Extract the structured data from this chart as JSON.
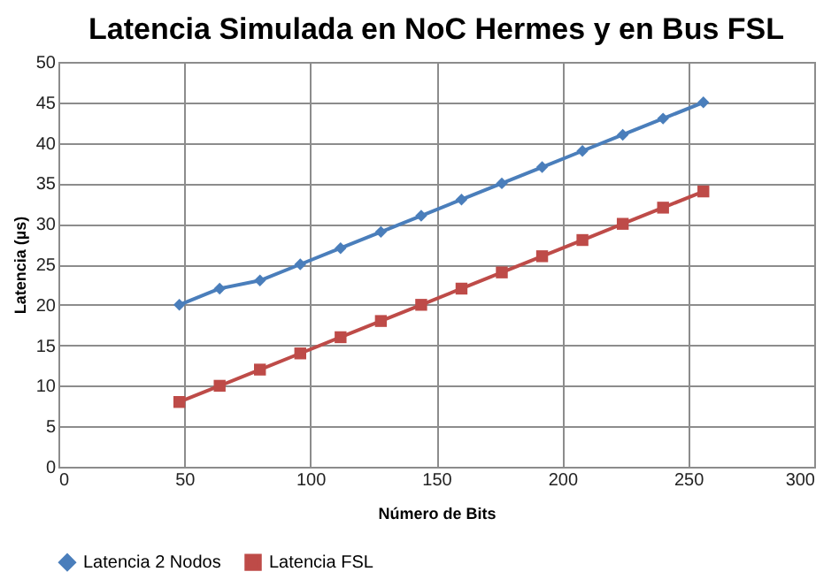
{
  "chart_data": {
    "type": "line",
    "title": "Latencia Simulada en NoC Hermes y en Bus FSL",
    "xlabel": "Número de Bits",
    "ylabel": "Latencia (µs)",
    "x": [
      48,
      64,
      80,
      96,
      112,
      128,
      144,
      160,
      176,
      192,
      208,
      224,
      240,
      256
    ],
    "series": [
      {
        "name": "Latencia 2 Nodos",
        "color": "#4a7ebb",
        "marker": "diamond",
        "values": [
          20,
          22,
          23,
          25,
          27,
          29,
          31,
          33,
          35,
          37,
          39,
          41,
          43,
          45
        ]
      },
      {
        "name": "Latencia FSL",
        "color": "#be4b48",
        "marker": "square",
        "values": [
          8,
          10,
          12,
          14,
          16,
          18,
          20,
          22,
          24,
          26,
          28,
          30,
          32,
          34
        ]
      }
    ],
    "xlim": [
      0,
      300
    ],
    "xticks": [
      0,
      50,
      100,
      150,
      200,
      250,
      300
    ],
    "ylim": [
      0,
      50
    ],
    "yticks": [
      0,
      5,
      10,
      15,
      20,
      25,
      30,
      35,
      40,
      45,
      50
    ],
    "grid": true,
    "legend": "bottom",
    "line_style": "solid"
  }
}
